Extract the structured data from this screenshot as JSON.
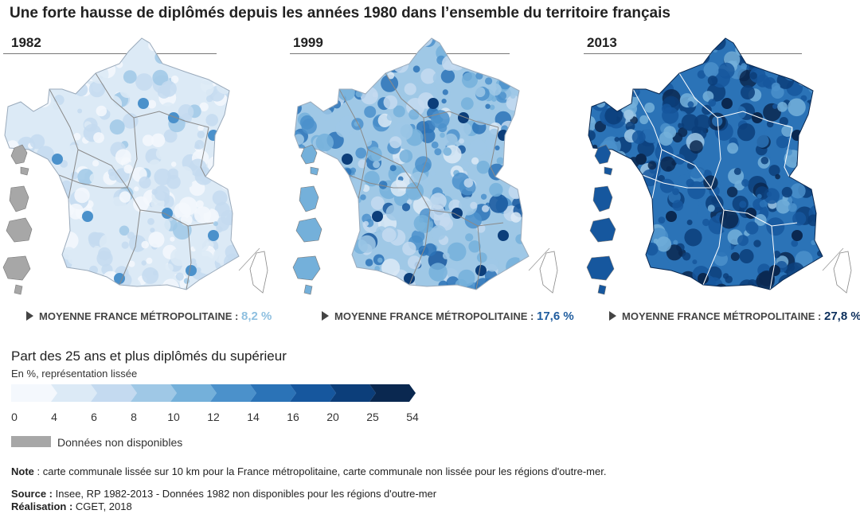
{
  "title": "Une forte hausse de diplômés depuis les années 1980 dans l’ensemble du territoire français",
  "maps": [
    {
      "year": "1982",
      "avg_label": "MOYENNE FRANCE MÉTROPOLITAINE :",
      "avg_value": "8,2 %",
      "value_color": "#8fc0e0",
      "level": 8.2
    },
    {
      "year": "1999",
      "avg_label": "MOYENNE FRANCE MÉTROPOLITAINE :",
      "avg_value": "17,6 %",
      "value_color": "#1f5c9e",
      "level": 17.6
    },
    {
      "year": "2013",
      "avg_label": "MOYENNE FRANCE MÉTROPOLITAINE :",
      "avg_value": "27,8 %",
      "value_color": "#0c2f5c",
      "level": 27.8
    }
  ],
  "legend": {
    "title": "Part des 25 ans et plus diplômés du supérieur",
    "subtitle": "En %, représentation lissée",
    "breaks": [
      "0",
      "4",
      "6",
      "8",
      "10",
      "12",
      "14",
      "16",
      "20",
      "25",
      "54"
    ],
    "colors": [
      "#f4f8fd",
      "#dceaf6",
      "#c4daf0",
      "#9fc8e6",
      "#74b0da",
      "#4b91cb",
      "#2b73b7",
      "#16579e",
      "#0c3e7a",
      "#0a2850"
    ],
    "nd_label": "Données non disponibles",
    "nd_color": "#a7a7a7"
  },
  "note": {
    "label": "Note",
    "text": " : carte communale lissée sur 10 km pour la France métropolitaine, carte communale non lissée pour les régions d'outre-mer."
  },
  "source": {
    "label": "Source :",
    "text": " Insee, RP 1982-2013 - Données 1982 non disponibles pour les régions d'outre-mer"
  },
  "realisation": {
    "label": "Réalisation :",
    "text": " CGET, 2018"
  }
}
